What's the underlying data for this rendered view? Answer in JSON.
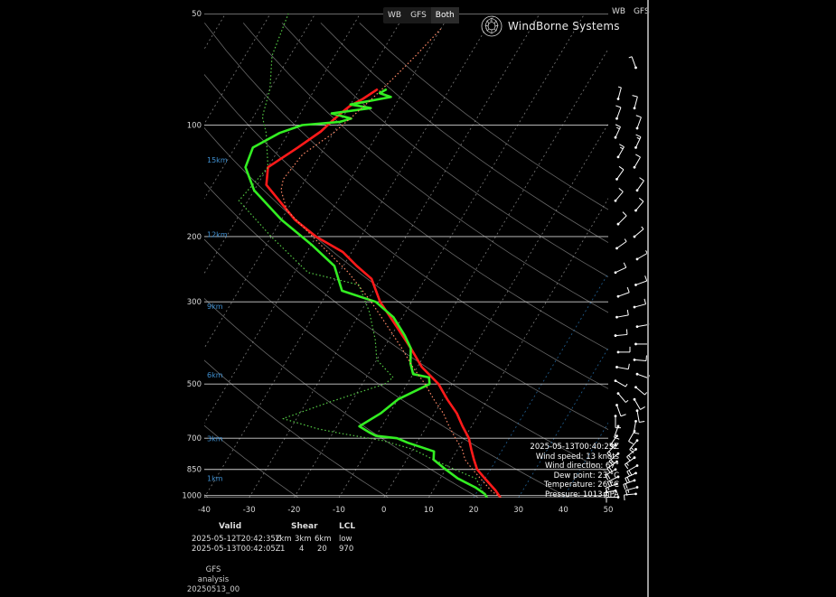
{
  "header": {
    "toggle": [
      "WB",
      "GFS",
      "Both"
    ],
    "toggle_selected": "Both",
    "right_labels": [
      "WB",
      "GFS"
    ]
  },
  "logo": {
    "text": "WindBorne Systems",
    "icon": "windborne-logo-icon"
  },
  "chart_data": {
    "type": "line",
    "subtype": "skew-T log-P sounding",
    "x_ticks": [
      -40,
      -30,
      -20,
      -10,
      0,
      10,
      20,
      30,
      40,
      50
    ],
    "xlim": [
      -40,
      50
    ],
    "y_scale": "log",
    "y_ticks": [
      50,
      100,
      200,
      300,
      500,
      700,
      850,
      1000
    ],
    "ylim": [
      1013,
      50
    ],
    "height_labels": [
      {
        "label": "15km",
        "p": 124
      },
      {
        "label": "12km",
        "p": 197
      },
      {
        "label": "9km",
        "p": 308
      },
      {
        "label": "6km",
        "p": 472
      },
      {
        "label": "3km",
        "p": 701
      },
      {
        "label": "1km",
        "p": 899
      }
    ],
    "series": [
      {
        "key": "wb_temperature",
        "color": "#ff1a1a",
        "style": "solid",
        "points": [
          [
            26,
            1013
          ],
          [
            24,
            970
          ],
          [
            20,
            900
          ],
          [
            17,
            850
          ],
          [
            15,
            800
          ],
          [
            13,
            750
          ],
          [
            11,
            700
          ],
          [
            8,
            650
          ],
          [
            5,
            600
          ],
          [
            1,
            550
          ],
          [
            -3,
            500
          ],
          [
            -9,
            450
          ],
          [
            -14,
            400
          ],
          [
            -20,
            350
          ],
          [
            -27,
            300
          ],
          [
            -32,
            260
          ],
          [
            -37,
            240
          ],
          [
            -42,
            220
          ],
          [
            -50,
            200
          ],
          [
            -57,
            180
          ],
          [
            -63,
            160
          ],
          [
            -68,
            145
          ],
          [
            -70,
            130
          ],
          [
            -66,
            115
          ],
          [
            -63,
            104
          ],
          [
            -62,
            98
          ],
          [
            -61,
            93
          ],
          [
            -60,
            89
          ],
          [
            -58,
            85
          ],
          [
            -56,
            80
          ]
        ]
      },
      {
        "key": "wb_dewpoint",
        "color": "#33ee22",
        "style": "solid",
        "points": [
          [
            23,
            1013
          ],
          [
            22,
            990
          ],
          [
            19,
            950
          ],
          [
            14,
            900
          ],
          [
            10,
            850
          ],
          [
            6,
            800
          ],
          [
            5,
            760
          ],
          [
            -2,
            720
          ],
          [
            -5,
            700
          ],
          [
            -10,
            690
          ],
          [
            -12,
            675
          ],
          [
            -15,
            650
          ],
          [
            -12,
            600
          ],
          [
            -10,
            550
          ],
          [
            -5,
            500
          ],
          [
            -6,
            480
          ],
          [
            -10,
            470
          ],
          [
            -12,
            440
          ],
          [
            -14,
            400
          ],
          [
            -17,
            370
          ],
          [
            -22,
            330
          ],
          [
            -28,
            300
          ],
          [
            -37,
            280
          ],
          [
            -42,
            240
          ],
          [
            -50,
            210
          ],
          [
            -60,
            180
          ],
          [
            -70,
            150
          ],
          [
            -75,
            130
          ],
          [
            -76,
            115
          ],
          [
            -72,
            105
          ],
          [
            -68,
            100
          ],
          [
            -60,
            98
          ],
          [
            -58,
            96
          ],
          [
            -63,
            93
          ],
          [
            -55,
            90
          ],
          [
            -60,
            88
          ],
          [
            -52,
            84
          ],
          [
            -55,
            82
          ],
          [
            -54,
            80
          ]
        ]
      },
      {
        "key": "gfs_temperature",
        "color": "#ff8866",
        "style": "dotted",
        "points": [
          [
            26,
            1013
          ],
          [
            23,
            970
          ],
          [
            19,
            900
          ],
          [
            16,
            850
          ],
          [
            13,
            800
          ],
          [
            11,
            750
          ],
          [
            8,
            700
          ],
          [
            5,
            650
          ],
          [
            2,
            600
          ],
          [
            -2,
            550
          ],
          [
            -6,
            500
          ],
          [
            -11,
            450
          ],
          [
            -16,
            400
          ],
          [
            -22,
            350
          ],
          [
            -29,
            300
          ],
          [
            -38,
            250
          ],
          [
            -48,
            210
          ],
          [
            -60,
            170
          ],
          [
            -64,
            150
          ],
          [
            -65,
            140
          ],
          [
            -64,
            120
          ],
          [
            -60,
            105
          ],
          [
            -58,
            95
          ],
          [
            -56,
            85
          ],
          [
            -54,
            75
          ],
          [
            -52,
            65
          ],
          [
            -50,
            55
          ]
        ]
      },
      {
        "key": "gfs_dewpoint",
        "color": "#55cc44",
        "style": "dotted",
        "points": [
          [
            23,
            1013
          ],
          [
            21,
            970
          ],
          [
            18,
            900
          ],
          [
            12,
            850
          ],
          [
            6,
            800
          ],
          [
            0,
            750
          ],
          [
            -8,
            710
          ],
          [
            -18,
            680
          ],
          [
            -24,
            660
          ],
          [
            -33,
            620
          ],
          [
            -25,
            560
          ],
          [
            -15,
            500
          ],
          [
            -14,
            480
          ],
          [
            -20,
            430
          ],
          [
            -23,
            380
          ],
          [
            -28,
            320
          ],
          [
            -34,
            270
          ],
          [
            -47,
            250
          ],
          [
            -60,
            200
          ],
          [
            -72,
            160
          ],
          [
            -70,
            130
          ],
          [
            -75,
            105
          ],
          [
            -78,
            95
          ],
          [
            -80,
            80
          ],
          [
            -84,
            65
          ],
          [
            -86,
            50
          ]
        ]
      }
    ],
    "winds": {
      "color": "#ffffff",
      "barbs": [
        {
          "p": 1010,
          "dir": 270,
          "spd": 10
        },
        {
          "p": 990,
          "dir": 265,
          "spd": 10
        },
        {
          "p": 970,
          "dir": 260,
          "spd": 15
        },
        {
          "p": 950,
          "dir": 255,
          "spd": 15
        },
        {
          "p": 930,
          "dir": 250,
          "spd": 15
        },
        {
          "p": 910,
          "dir": 250,
          "spd": 20
        },
        {
          "p": 890,
          "dir": 245,
          "spd": 20
        },
        {
          "p": 870,
          "dir": 245,
          "spd": 20
        },
        {
          "p": 850,
          "dir": 240,
          "spd": 20
        },
        {
          "p": 830,
          "dir": 240,
          "spd": 20
        },
        {
          "p": 810,
          "dir": 235,
          "spd": 20
        },
        {
          "p": 790,
          "dir": 235,
          "spd": 15
        },
        {
          "p": 770,
          "dir": 230,
          "spd": 15
        },
        {
          "p": 750,
          "dir": 230,
          "spd": 15
        },
        {
          "p": 730,
          "dir": 225,
          "spd": 15
        },
        {
          "p": 710,
          "dir": 220,
          "spd": 15
        },
        {
          "p": 690,
          "dir": 215,
          "spd": 15
        },
        {
          "p": 670,
          "dir": 210,
          "spd": 10
        },
        {
          "p": 650,
          "dir": 200,
          "spd": 10
        },
        {
          "p": 630,
          "dir": 190,
          "spd": 10
        },
        {
          "p": 610,
          "dir": 180,
          "spd": 10
        },
        {
          "p": 590,
          "dir": 170,
          "spd": 10
        },
        {
          "p": 570,
          "dir": 160,
          "spd": 10
        },
        {
          "p": 550,
          "dir": 150,
          "spd": 10
        },
        {
          "p": 530,
          "dir": 140,
          "spd": 5
        },
        {
          "p": 510,
          "dir": 130,
          "spd": 5
        },
        {
          "p": 490,
          "dir": 120,
          "spd": 5
        },
        {
          "p": 470,
          "dir": 110,
          "spd": 5
        },
        {
          "p": 450,
          "dir": 100,
          "spd": 10
        },
        {
          "p": 430,
          "dir": 95,
          "spd": 10
        },
        {
          "p": 410,
          "dir": 90,
          "spd": 10
        },
        {
          "p": 390,
          "dir": 90,
          "spd": 10
        },
        {
          "p": 370,
          "dir": 85,
          "spd": 10
        },
        {
          "p": 350,
          "dir": 80,
          "spd": 10
        },
        {
          "p": 330,
          "dir": 80,
          "spd": 10
        },
        {
          "p": 310,
          "dir": 75,
          "spd": 10
        },
        {
          "p": 290,
          "dir": 70,
          "spd": 10
        },
        {
          "p": 270,
          "dir": 70,
          "spd": 10
        },
        {
          "p": 250,
          "dir": 65,
          "spd": 10
        },
        {
          "p": 230,
          "dir": 60,
          "spd": 5
        },
        {
          "p": 215,
          "dir": 55,
          "spd": 5
        },
        {
          "p": 200,
          "dir": 50,
          "spd": 5
        },
        {
          "p": 185,
          "dir": 45,
          "spd": 10
        },
        {
          "p": 170,
          "dir": 40,
          "spd": 10
        },
        {
          "p": 160,
          "dir": 40,
          "spd": 10
        },
        {
          "p": 150,
          "dir": 35,
          "spd": 10
        },
        {
          "p": 140,
          "dir": 35,
          "spd": 10
        },
        {
          "p": 130,
          "dir": 30,
          "spd": 10
        },
        {
          "p": 122,
          "dir": 30,
          "spd": 15
        },
        {
          "p": 115,
          "dir": 25,
          "spd": 15
        },
        {
          "p": 108,
          "dir": 25,
          "spd": 15
        },
        {
          "p": 102,
          "dir": 20,
          "spd": 10
        },
        {
          "p": 96,
          "dir": 20,
          "spd": 10
        },
        {
          "p": 90,
          "dir": 15,
          "spd": 10
        },
        {
          "p": 85,
          "dir": 15,
          "spd": 5
        },
        {
          "p": 70,
          "dir": 340,
          "spd": 5
        }
      ]
    }
  },
  "hover": {
    "time": "2025-05-13T00:40:25Z",
    "wind_speed": "Wind speed: 13 knots",
    "wind_direction": "Wind direction: 67°",
    "dew_point": "Dew point: 23 °C",
    "temperature": "Temperature: 26 °C",
    "pressure": "Pressure: 1013 hPA"
  },
  "stats": {
    "headers": {
      "valid": "Valid",
      "shear": "Shear",
      "lcl": "LCL"
    },
    "subheaders": [
      "1km",
      "3km",
      "6km"
    ],
    "rows": [
      {
        "valid": "2025-05-12T20:42:35Z",
        "s1": "",
        "s3": "",
        "s6": "",
        "lcl": "low"
      },
      {
        "valid": "2025-05-13T00:42:05Z",
        "s1": "1",
        "s3": "4",
        "s6": "20",
        "lcl": "970"
      }
    ]
  },
  "model": {
    "name": "GFS",
    "type": "analysis",
    "run": "20250513_00"
  }
}
